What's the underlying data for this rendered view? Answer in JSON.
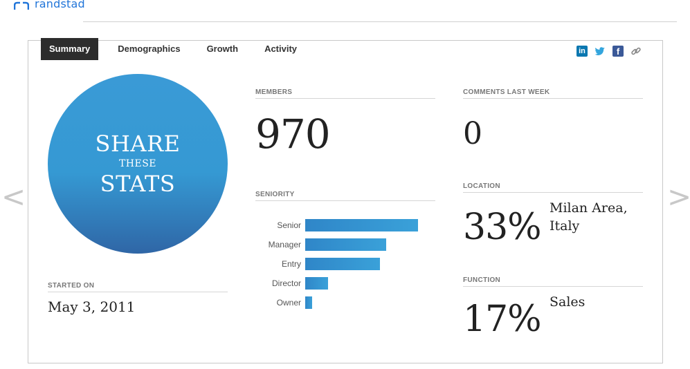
{
  "header": {
    "logo_text": "randstad",
    "logo_icon": "randstad-logo-icon"
  },
  "tabs": [
    {
      "label": "Summary",
      "active": true
    },
    {
      "label": "Demographics",
      "active": false
    },
    {
      "label": "Growth",
      "active": false
    },
    {
      "label": "Activity",
      "active": false
    }
  ],
  "social": {
    "linkedin": "in",
    "facebook": "f",
    "icons": [
      "linkedin-icon",
      "twitter-icon",
      "facebook-icon",
      "link-icon"
    ]
  },
  "share": {
    "line1": "SHARE",
    "line2": "THESE",
    "line3": "STATS"
  },
  "started": {
    "label": "STARTED ON",
    "value": "May 3, 2011"
  },
  "members": {
    "label": "MEMBERS",
    "value": "970"
  },
  "comments": {
    "label": "COMMENTS LAST WEEK",
    "value": "0"
  },
  "seniority": {
    "label": "SENIORITY"
  },
  "chart_data": {
    "type": "bar",
    "orientation": "horizontal",
    "categories": [
      "Senior",
      "Manager",
      "Entry",
      "Director",
      "Owner"
    ],
    "values": [
      100,
      72,
      66,
      20,
      6
    ],
    "color": "#3399d6"
  },
  "location": {
    "label": "LOCATION",
    "percent": "33%",
    "desc": "Milan Area, Italy"
  },
  "function": {
    "label": "FUNCTION",
    "percent": "17%",
    "desc": "Sales"
  },
  "nav": {
    "prev": "<",
    "next": ">"
  },
  "colors": {
    "accent": "#3399d6",
    "brand": "#2175d9",
    "tab_active_bg": "#2d2d2d"
  }
}
